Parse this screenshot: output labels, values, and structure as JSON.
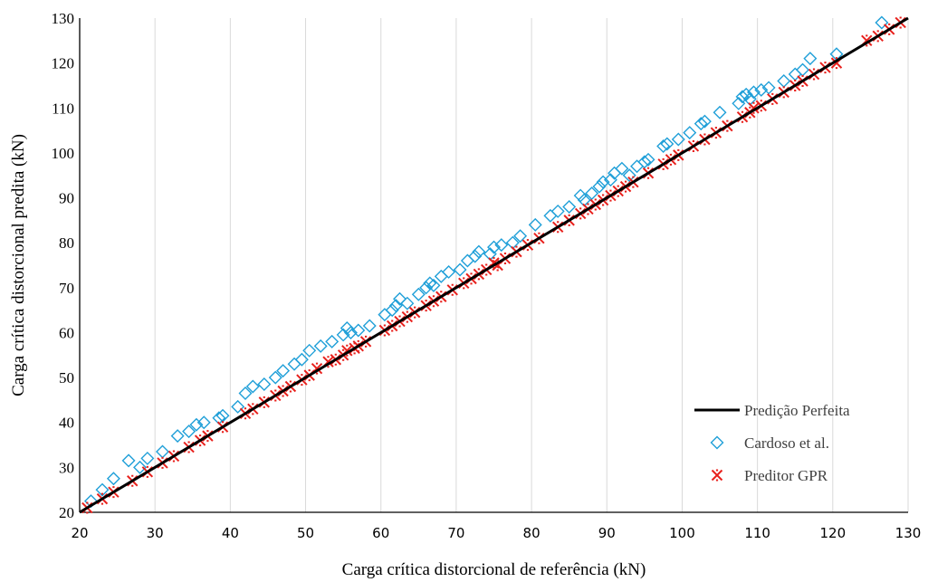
{
  "chart_data": {
    "type": "scatter",
    "title": "",
    "xlabel": "Carga crítica distorcional de referência (kN)",
    "ylabel": "Carga crítica distorcional predita (kN)",
    "xlim": [
      20,
      130
    ],
    "ylim": [
      20,
      130
    ],
    "xticks": [
      "20",
      "30",
      "40",
      "50",
      "60",
      "70",
      "80",
      "90",
      "100",
      "110",
      "120",
      "130"
    ],
    "yticks": [
      "20",
      "30",
      "40",
      "50",
      "60",
      "70",
      "80",
      "90",
      "100",
      "110",
      "120",
      "130"
    ],
    "grid": "vertical",
    "legend_position": "bottom-right",
    "series": [
      {
        "name": "Predição Perfeita",
        "kind": "line",
        "color": "#000000",
        "x": [
          20,
          130
        ],
        "y": [
          20,
          130
        ]
      },
      {
        "name": "Cardoso et al.",
        "kind": "marker-diamond",
        "color": "#1f9fd8",
        "x": [
          21.5,
          23.0,
          24.5,
          26.5,
          28.0,
          29.0,
          31.0,
          33.0,
          34.5,
          35.5,
          36.5,
          38.5,
          39.0,
          41.0,
          42.0,
          43.0,
          44.5,
          46.0,
          47.0,
          48.5,
          49.5,
          50.5,
          52.0,
          53.5,
          55.0,
          55.5,
          56.0,
          57.0,
          58.5,
          60.5,
          61.5,
          62.0,
          62.5,
          63.5,
          65.0,
          66.0,
          66.5,
          67.0,
          68.0,
          69.0,
          70.5,
          71.5,
          72.5,
          73.0,
          74.5,
          75.0,
          76.0,
          77.5,
          78.5,
          80.5,
          82.5,
          83.5,
          85.0,
          86.5,
          87.0,
          88.0,
          89.0,
          89.5,
          90.5,
          91.0,
          92.0,
          93.0,
          94.0,
          95.5,
          95.0,
          97.5,
          98.0,
          99.5,
          101.0,
          102.5,
          103.0,
          105.0,
          107.5,
          108.0,
          108.5,
          109.0,
          109.5,
          110.5,
          111.5,
          113.5,
          115.0,
          116.0,
          117.0,
          120.5,
          126.5
        ],
        "y": [
          22.5,
          25.0,
          27.5,
          31.5,
          30.0,
          32.0,
          33.5,
          37.0,
          38.0,
          39.5,
          40.0,
          41.0,
          41.5,
          43.5,
          46.5,
          48.0,
          48.5,
          50.0,
          51.5,
          53.0,
          54.0,
          56.0,
          57.0,
          58.0,
          59.5,
          61.0,
          60.0,
          60.5,
          61.5,
          64.0,
          65.0,
          66.0,
          67.5,
          66.5,
          68.5,
          70.0,
          71.0,
          70.5,
          72.5,
          73.5,
          74.0,
          76.0,
          77.0,
          78.0,
          77.5,
          79.0,
          79.5,
          80.0,
          81.5,
          84.0,
          86.0,
          87.0,
          88.0,
          90.5,
          89.5,
          91.0,
          92.5,
          93.5,
          94.0,
          95.5,
          96.5,
          95.0,
          97.0,
          98.5,
          98.0,
          101.5,
          102.0,
          103.0,
          104.5,
          106.5,
          107.0,
          109.0,
          111.0,
          112.5,
          113.0,
          112.0,
          113.5,
          114.0,
          114.5,
          116.0,
          117.5,
          118.5,
          121.0,
          122.0,
          129.0
        ]
      },
      {
        "name": "Preditor GPR",
        "kind": "marker-asterisk",
        "color": "#e8201c",
        "x": [
          21.0,
          23.0,
          24.5,
          27.0,
          29.0,
          31.0,
          32.5,
          34.5,
          36.0,
          37.0,
          39.0,
          42.0,
          43.0,
          44.5,
          46.0,
          47.0,
          48.0,
          49.5,
          50.5,
          51.5,
          53.0,
          54.0,
          55.0,
          55.5,
          56.5,
          57.0,
          58.0,
          60.5,
          61.5,
          62.5,
          63.5,
          64.5,
          66.0,
          67.0,
          68.0,
          69.5,
          71.0,
          72.0,
          73.0,
          74.0,
          75.0,
          75.5,
          76.5,
          78.0,
          79.5,
          81.0,
          83.5,
          85.0,
          86.5,
          87.5,
          88.5,
          89.5,
          90.5,
          91.5,
          92.5,
          93.5,
          95.5,
          97.5,
          98.5,
          99.5,
          101.5,
          103.0,
          104.5,
          106.0,
          108.0,
          109.0,
          109.5,
          110.5,
          112.0,
          113.5,
          115.0,
          116.0,
          117.5,
          119.0,
          120.5,
          124.5,
          126.0,
          127.5,
          129.0
        ],
        "y": [
          21.0,
          23.0,
          24.5,
          27.0,
          29.0,
          31.0,
          32.5,
          34.5,
          36.0,
          37.0,
          39.0,
          42.0,
          43.0,
          44.5,
          46.0,
          47.0,
          48.0,
          49.5,
          50.5,
          52.0,
          53.5,
          54.0,
          55.0,
          56.0,
          56.5,
          57.0,
          58.0,
          60.5,
          61.5,
          62.5,
          63.5,
          64.5,
          66.0,
          67.0,
          68.0,
          69.5,
          71.0,
          72.0,
          73.0,
          74.0,
          75.5,
          75.0,
          76.5,
          78.0,
          79.5,
          81.0,
          83.5,
          85.0,
          86.5,
          87.5,
          88.5,
          89.5,
          90.5,
          91.5,
          92.5,
          93.5,
          95.5,
          97.5,
          98.5,
          99.5,
          101.5,
          103.0,
          104.5,
          106.0,
          108.0,
          109.0,
          110.0,
          110.5,
          112.0,
          113.5,
          115.0,
          116.0,
          117.5,
          119.0,
          120.0,
          125.0,
          126.0,
          127.5,
          129.0
        ]
      }
    ]
  }
}
